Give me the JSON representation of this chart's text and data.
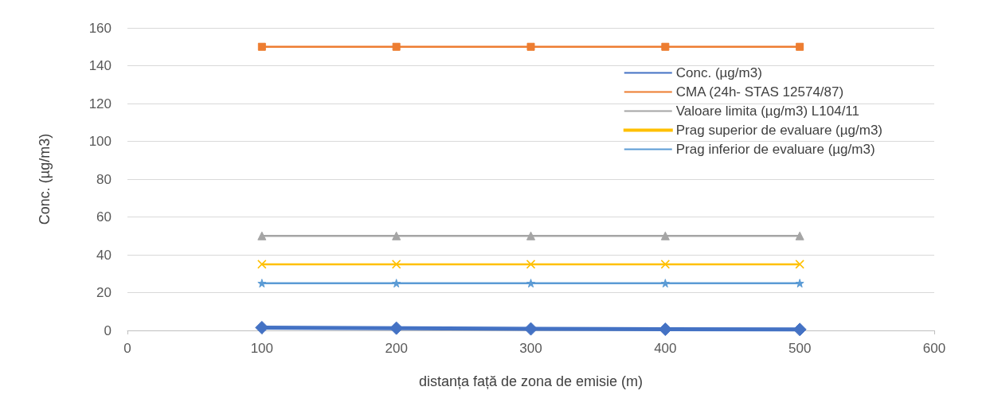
{
  "chart_data": {
    "type": "line",
    "xlabel": "distanța față de zona de emisie (m)",
    "ylabel": "Conc. (µg/m3)",
    "x": [
      100,
      200,
      300,
      400,
      500
    ],
    "series": [
      {
        "name": "Conc. (µg/m3)",
        "color": "#4472c4",
        "marker": "diamond",
        "values": [
          1.5,
          1.2,
          0.8,
          0.6,
          0.5
        ]
      },
      {
        "name": "CMA (24h- STAS 12574/87)",
        "color": "#ed7d31",
        "marker": "square",
        "values": [
          150,
          150,
          150,
          150,
          150
        ]
      },
      {
        "name": "Valoare limita (µg/m3) L104/11",
        "color": "#a5a5a5",
        "marker": "triangle",
        "values": [
          50,
          50,
          50,
          50,
          50
        ]
      },
      {
        "name": "Prag superior de evaluare (µg/m3)",
        "color": "#ffc000",
        "marker": "cross",
        "values": [
          35,
          35,
          35,
          35,
          35
        ]
      },
      {
        "name": "Prag inferior de evaluare (µg/m3)",
        "color": "#5b9bd5",
        "marker": "star",
        "values": [
          25,
          25,
          25,
          25,
          25
        ]
      }
    ],
    "xlim": [
      0,
      600
    ],
    "xticks": [
      0,
      100,
      200,
      300,
      400,
      500,
      600
    ],
    "ylim": [
      0,
      160
    ],
    "yticks": [
      0,
      20,
      40,
      60,
      80,
      100,
      120,
      140,
      160
    ],
    "grid": "y",
    "legend": "top right"
  }
}
